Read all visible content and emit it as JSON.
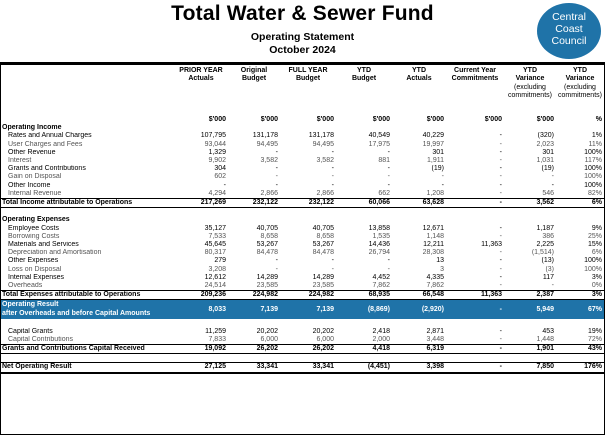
{
  "header": {
    "title": "Total Water & Sewer Fund",
    "subtitle": "Operating Statement",
    "period": "October 2024",
    "logo_lines": [
      "Central",
      "Coast",
      "Council"
    ]
  },
  "columns": [
    "PRIOR YEAR Actuals",
    "Original Budget",
    "FULL YEAR Budget",
    "YTD Budget",
    "YTD Actuals",
    "Current Year Commitments",
    "YTD Variance (excluding commitments)",
    "YTD Variance (excluding commitments)"
  ],
  "column_headers": [
    {
      "l1": "PRIOR YEAR",
      "l2": "Actuals",
      "l3": "",
      "l4": ""
    },
    {
      "l1": "Original",
      "l2": "Budget",
      "l3": "",
      "l4": ""
    },
    {
      "l1": "FULL YEAR",
      "l2": "Budget",
      "l3": "",
      "l4": ""
    },
    {
      "l1": "YTD",
      "l2": "Budget",
      "l3": "",
      "l4": ""
    },
    {
      "l1": "YTD",
      "l2": "Actuals",
      "l3": "",
      "l4": ""
    },
    {
      "l1": "Current Year",
      "l2": "Commitments",
      "l3": "",
      "l4": ""
    },
    {
      "l1": "YTD",
      "l2": "Variance",
      "l3": "(excluding",
      "l4": "commitments)"
    },
    {
      "l1": "YTD",
      "l2": "Variance",
      "l3": "(excluding",
      "l4": "commitments)"
    }
  ],
  "units": [
    "$'000",
    "$'000",
    "$'000",
    "$'000",
    "$'000",
    "$'000",
    "$'000",
    "%"
  ],
  "sections": {
    "income": "Operating Income",
    "expenses": "Operating Expenses",
    "result_l1": "Operating Result",
    "result_l2": "after Overheads and before Capital Amounts"
  },
  "income_rows": [
    {
      "label": "Rates and Annual Charges",
      "v": [
        "107,795",
        "131,178",
        "131,178",
        "40,549",
        "40,229",
        "-",
        "(320)",
        "1%"
      ]
    },
    {
      "label": "User Charges and Fees",
      "v": [
        "93,044",
        "94,495",
        "94,495",
        "17,975",
        "19,997",
        "-",
        "2,023",
        "11%"
      ],
      "gray": true
    },
    {
      "label": "Other Revenue",
      "v": [
        "1,329",
        "-",
        "-",
        "-",
        "301",
        "-",
        "301",
        "100%"
      ]
    },
    {
      "label": "Interest",
      "v": [
        "9,902",
        "3,582",
        "3,582",
        "881",
        "1,911",
        "-",
        "1,031",
        "117%"
      ],
      "gray": true
    },
    {
      "label": "Grants and Contributions",
      "v": [
        "304",
        "-",
        "-",
        "-",
        "(19)",
        "-",
        "(19)",
        "100%"
      ]
    },
    {
      "label": "Gain on Disposal",
      "v": [
        "602",
        "-",
        "-",
        "-",
        "-",
        "-",
        "-",
        "100%"
      ],
      "gray": true
    },
    {
      "label": "Other Income",
      "v": [
        "-",
        "-",
        "-",
        "-",
        "-",
        "-",
        "-",
        "100%"
      ]
    },
    {
      "label": "Internal Revenue",
      "v": [
        "4,294",
        "2,866",
        "2,866",
        "662",
        "1,208",
        "-",
        "546",
        "82%"
      ],
      "gray": true
    }
  ],
  "income_total": {
    "label": "Total Income attributable to Operations",
    "v": [
      "217,269",
      "232,122",
      "232,122",
      "60,066",
      "63,628",
      "-",
      "3,562",
      "6%"
    ]
  },
  "expense_rows": [
    {
      "label": "Employee Costs",
      "v": [
        "35,127",
        "40,705",
        "40,705",
        "13,858",
        "12,671",
        "-",
        "1,187",
        "9%"
      ]
    },
    {
      "label": "Borrowing Costs",
      "v": [
        "7,533",
        "8,658",
        "8,658",
        "1,535",
        "1,148",
        "-",
        "386",
        "25%"
      ],
      "gray": true
    },
    {
      "label": "Materials and Services",
      "v": [
        "45,645",
        "53,267",
        "53,267",
        "14,436",
        "12,211",
        "11,363",
        "2,225",
        "15%"
      ]
    },
    {
      "label": "Depreciation and Amortisation",
      "v": [
        "80,317",
        "84,478",
        "84,478",
        "26,794",
        "28,308",
        "-",
        "(1,514)",
        "6%"
      ],
      "gray": true
    },
    {
      "label": "Other Expenses",
      "v": [
        "279",
        "-",
        "-",
        "-",
        "13",
        "-",
        "(13)",
        "100%"
      ]
    },
    {
      "label": "Loss on Disposal",
      "v": [
        "3,208",
        "-",
        "-",
        "-",
        "3",
        "-",
        "(3)",
        "100%"
      ],
      "gray": true
    },
    {
      "label": "Internal Expenses",
      "v": [
        "12,612",
        "14,289",
        "14,289",
        "4,452",
        "4,335",
        "-",
        "117",
        "3%"
      ]
    },
    {
      "label": "Overheads",
      "v": [
        "24,514",
        "23,585",
        "23,585",
        "7,862",
        "7,862",
        "-",
        "-",
        "0%"
      ],
      "gray": true
    }
  ],
  "expense_total": {
    "label": "Total Expenses attributable to Operations",
    "v": [
      "209,236",
      "224,982",
      "224,982",
      "68,935",
      "66,548",
      "11,363",
      "2,387",
      "3%"
    ]
  },
  "operating_result": {
    "v": [
      "8,033",
      "7,139",
      "7,139",
      "(8,869)",
      "(2,920)",
      "-",
      "5,949",
      "67%"
    ]
  },
  "capital_rows": [
    {
      "label": "Capital Grants",
      "v": [
        "11,259",
        "20,202",
        "20,202",
        "2,418",
        "2,871",
        "-",
        "453",
        "19%"
      ]
    },
    {
      "label": "Capital Contributions",
      "v": [
        "7,833",
        "6,000",
        "6,000",
        "2,000",
        "3,448",
        "-",
        "1,448",
        "72%"
      ],
      "gray": true
    }
  ],
  "capital_total": {
    "label": "Grants and Contributions Capital Received",
    "v": [
      "19,092",
      "26,202",
      "26,202",
      "4,418",
      "6,319",
      "-",
      "1,901",
      "43%"
    ]
  },
  "net_result": {
    "label": "Net Operating Result",
    "v": [
      "27,125",
      "33,341",
      "33,341",
      "(4,451)",
      "3,398",
      "-",
      "7,850",
      "176%"
    ]
  },
  "colors": {
    "accent": "#1f73a8"
  }
}
